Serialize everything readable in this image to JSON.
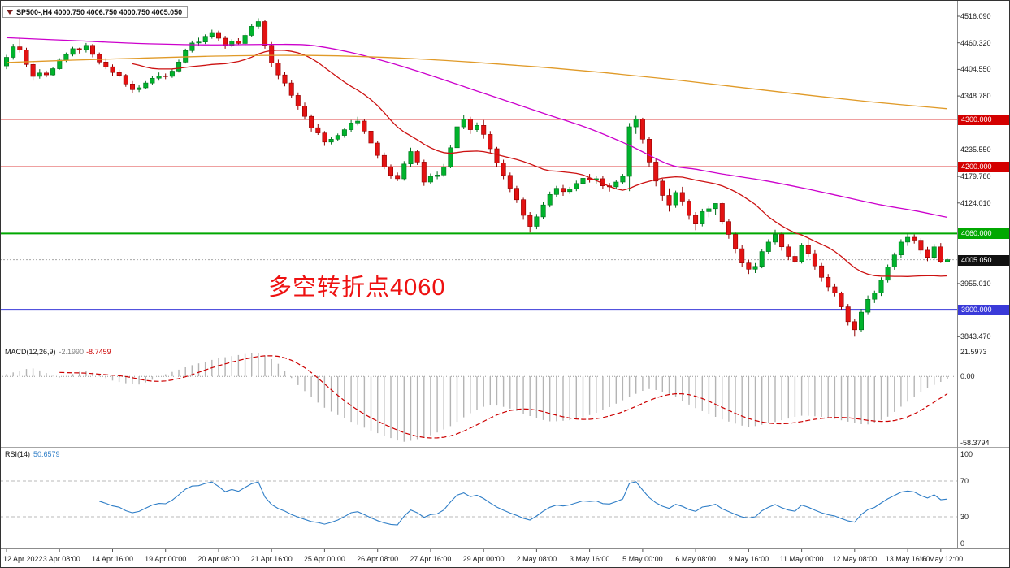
{
  "window": {
    "chart_title": "SP500-,H4 4000.750 4006.750 4000.750 4005.050"
  },
  "annotation": {
    "text": "多空转折点4060",
    "color": "#ee1111"
  },
  "macd": {
    "label": "MACD(12,26,9)",
    "main_value": "-2.1990",
    "signal_value": "-8.7459"
  },
  "rsi": {
    "label": "RSI(14)",
    "value": "50.6579"
  },
  "chart_data": {
    "type": "candlestick",
    "symbol": "SP500-",
    "timeframe": "H4",
    "current_bar": {
      "open": 4000.75,
      "high": 4006.75,
      "low": 4000.75,
      "close": 4005.05
    },
    "price_axis": {
      "range": {
        "top": 4548.5,
        "bottom": 3826.9
      },
      "ticks": [
        {
          "v": 4516.09,
          "t": "4516.090"
        },
        {
          "v": 4460.32,
          "t": "4460.320"
        },
        {
          "v": 4404.55,
          "t": "4404.550"
        },
        {
          "v": 4348.78,
          "t": "4348.780"
        },
        {
          "v": 4235.55,
          "t": "4235.550"
        },
        {
          "v": 4179.78,
          "t": "4179.780"
        },
        {
          "v": 4124.01,
          "t": "4124.010"
        },
        {
          "v": 3955.01,
          "t": "3955.010"
        },
        {
          "v": 3843.47,
          "t": "3843.470"
        }
      ]
    },
    "levels": [
      {
        "price": 4300,
        "label": "4300.000",
        "color": "#d40000",
        "width": 1.4
      },
      {
        "price": 4200,
        "label": "4200.000",
        "color": "#d40000",
        "width": 1.4
      },
      {
        "price": 4060,
        "label": "4060.000",
        "color": "#00a800",
        "width": 2
      },
      {
        "price": 3900,
        "label": "3900.000",
        "color": "#3a3ad9",
        "width": 2
      }
    ],
    "current_price": {
      "price": 4005.05,
      "label": "4005.050",
      "badge_color": "#111111",
      "line_color": "#a8a8a8"
    },
    "colors": {
      "up": "#00b32c",
      "up_edge": "#00701c",
      "down": "#e31212",
      "down_edge": "#8f0000"
    },
    "candles": [
      [
        4412,
        4435,
        4405,
        4430
      ],
      [
        4430,
        4458,
        4425,
        4452
      ],
      [
        4452,
        4471,
        4440,
        4445
      ],
      [
        4445,
        4450,
        4410,
        4415
      ],
      [
        4415,
        4420,
        4381,
        4390
      ],
      [
        4390,
        4405,
        4385,
        4397
      ],
      [
        4397,
        4402,
        4388,
        4393
      ],
      [
        4393,
        4410,
        4391,
        4406
      ],
      [
        4406,
        4428,
        4404,
        4424
      ],
      [
        4424,
        4440,
        4420,
        4436
      ],
      [
        4436,
        4452,
        4432,
        4448
      ],
      [
        4448,
        4450,
        4438,
        4446
      ],
      [
        4446,
        4460,
        4440,
        4455
      ],
      [
        4455,
        4458,
        4430,
        4436
      ],
      [
        4436,
        4440,
        4415,
        4420
      ],
      [
        4420,
        4428,
        4405,
        4410
      ],
      [
        4410,
        4415,
        4390,
        4398
      ],
      [
        4398,
        4404,
        4388,
        4392
      ],
      [
        4392,
        4395,
        4368,
        4374
      ],
      [
        4374,
        4380,
        4355,
        4362
      ],
      [
        4362,
        4371,
        4357,
        4366
      ],
      [
        4366,
        4380,
        4363,
        4376
      ],
      [
        4376,
        4390,
        4372,
        4386
      ],
      [
        4386,
        4398,
        4381,
        4391
      ],
      [
        4391,
        4396,
        4384,
        4390
      ],
      [
        4390,
        4406,
        4387,
        4401
      ],
      [
        4401,
        4425,
        4398,
        4420
      ],
      [
        4420,
        4448,
        4417,
        4444
      ],
      [
        4444,
        4465,
        4440,
        4460
      ],
      [
        4460,
        4471,
        4454,
        4462
      ],
      [
        4462,
        4478,
        4458,
        4474
      ],
      [
        4474,
        4488,
        4469,
        4482
      ],
      [
        4482,
        4486,
        4464,
        4470
      ],
      [
        4470,
        4475,
        4448,
        4455
      ],
      [
        4455,
        4468,
        4451,
        4464
      ],
      [
        4464,
        4470,
        4456,
        4459
      ],
      [
        4459,
        4480,
        4455,
        4476
      ],
      [
        4476,
        4500,
        4472,
        4495
      ],
      [
        4495,
        4512,
        4489,
        4505
      ],
      [
        4505,
        4508,
        4448,
        4455
      ],
      [
        4455,
        4462,
        4410,
        4418
      ],
      [
        4418,
        4425,
        4384,
        4393
      ],
      [
        4393,
        4400,
        4369,
        4376
      ],
      [
        4376,
        4382,
        4344,
        4350
      ],
      [
        4350,
        4356,
        4320,
        4328
      ],
      [
        4328,
        4335,
        4299,
        4306
      ],
      [
        4306,
        4310,
        4274,
        4282
      ],
      [
        4282,
        4290,
        4267,
        4271
      ],
      [
        4271,
        4275,
        4244,
        4252
      ],
      [
        4252,
        4262,
        4247,
        4258
      ],
      [
        4258,
        4270,
        4254,
        4266
      ],
      [
        4266,
        4282,
        4261,
        4278
      ],
      [
        4278,
        4298,
        4273,
        4292
      ],
      [
        4292,
        4305,
        4287,
        4296
      ],
      [
        4296,
        4300,
        4269,
        4275
      ],
      [
        4275,
        4280,
        4244,
        4250
      ],
      [
        4250,
        4255,
        4217,
        4224
      ],
      [
        4224,
        4230,
        4195,
        4200
      ],
      [
        4200,
        4205,
        4175,
        4182
      ],
      [
        4182,
        4188,
        4170,
        4175
      ],
      [
        4175,
        4212,
        4171,
        4206
      ],
      [
        4206,
        4240,
        4199,
        4232
      ],
      [
        4232,
        4236,
        4204,
        4210
      ],
      [
        4210,
        4215,
        4160,
        4168
      ],
      [
        4168,
        4186,
        4163,
        4180
      ],
      [
        4180,
        4190,
        4174,
        4183
      ],
      [
        4183,
        4206,
        4179,
        4200
      ],
      [
        4200,
        4246,
        4197,
        4240
      ],
      [
        4240,
        4290,
        4237,
        4284
      ],
      [
        4284,
        4308,
        4279,
        4300
      ],
      [
        4300,
        4305,
        4269,
        4278
      ],
      [
        4278,
        4293,
        4273,
        4287
      ],
      [
        4287,
        4298,
        4259,
        4268
      ],
      [
        4268,
        4275,
        4229,
        4238
      ],
      [
        4238,
        4242,
        4199,
        4208
      ],
      [
        4208,
        4215,
        4174,
        4182
      ],
      [
        4182,
        4188,
        4147,
        4155
      ],
      [
        4155,
        4160,
        4124,
        4131
      ],
      [
        4131,
        4135,
        4089,
        4098
      ],
      [
        4098,
        4105,
        4062,
        4075
      ],
      [
        4075,
        4101,
        4069,
        4095
      ],
      [
        4095,
        4126,
        4091,
        4120
      ],
      [
        4120,
        4148,
        4115,
        4142
      ],
      [
        4142,
        4160,
        4137,
        4155
      ],
      [
        4155,
        4162,
        4139,
        4148
      ],
      [
        4148,
        4158,
        4143,
        4154
      ],
      [
        4154,
        4171,
        4149,
        4165
      ],
      [
        4165,
        4182,
        4159,
        4176
      ],
      [
        4176,
        4185,
        4167,
        4172
      ],
      [
        4172,
        4180,
        4165,
        4175
      ],
      [
        4175,
        4180,
        4154,
        4160
      ],
      [
        4160,
        4166,
        4148,
        4158
      ],
      [
        4158,
        4172,
        4153,
        4168
      ],
      [
        4168,
        4185,
        4163,
        4180
      ],
      [
        4180,
        4292,
        4149,
        4284
      ],
      [
        4284,
        4307,
        4269,
        4300
      ],
      [
        4300,
        4303,
        4249,
        4258
      ],
      [
        4258,
        4262,
        4199,
        4210
      ],
      [
        4210,
        4218,
        4159,
        4170
      ],
      [
        4170,
        4175,
        4129,
        4140
      ],
      [
        4140,
        4155,
        4106,
        4120
      ],
      [
        4120,
        4150,
        4114,
        4146
      ],
      [
        4146,
        4158,
        4119,
        4128
      ],
      [
        4128,
        4132,
        4089,
        4098
      ],
      [
        4098,
        4105,
        4067,
        4080
      ],
      [
        4080,
        4112,
        4075,
        4106
      ],
      [
        4106,
        4118,
        4094,
        4112
      ],
      [
        4112,
        4121,
        4099,
        4123
      ],
      [
        4123,
        4125,
        4079,
        4085
      ],
      [
        4085,
        4090,
        4049,
        4058
      ],
      [
        4058,
        4062,
        4019,
        4028
      ],
      [
        4028,
        4035,
        3989,
        3998
      ],
      [
        3998,
        4005,
        3975,
        3985
      ],
      [
        3985,
        3998,
        3977,
        3991
      ],
      [
        3991,
        4028,
        3987,
        4022
      ],
      [
        4022,
        4048,
        4017,
        4042
      ],
      [
        4042,
        4068,
        4037,
        4058
      ],
      [
        4058,
        4062,
        4024,
        4032
      ],
      [
        4032,
        4038,
        4004,
        4012
      ],
      [
        4012,
        4020,
        3998,
        4001
      ],
      [
        4001,
        4040,
        3997,
        4035
      ],
      [
        4035,
        4049,
        4011,
        4018
      ],
      [
        4018,
        4025,
        3984,
        3992
      ],
      [
        3992,
        3998,
        3959,
        3968
      ],
      [
        3968,
        3975,
        3939,
        3948
      ],
      [
        3948,
        3955,
        3928,
        3935
      ],
      [
        3935,
        3938,
        3899,
        3906
      ],
      [
        3906,
        3912,
        3867,
        3875
      ],
      [
        3875,
        3880,
        3843.5,
        3858
      ],
      [
        3858,
        3902,
        3854,
        3895
      ],
      [
        3895,
        3930,
        3889,
        3922
      ],
      [
        3922,
        3940,
        3914,
        3935
      ],
      [
        3935,
        3968,
        3929,
        3962
      ],
      [
        3962,
        3995,
        3957,
        3990
      ],
      [
        3990,
        4020,
        3984,
        4015
      ],
      [
        4015,
        4048,
        4009,
        4042
      ],
      [
        4042,
        4060,
        4034,
        4052
      ],
      [
        4052,
        4058,
        4039,
        4046
      ],
      [
        4046,
        4050,
        4017,
        4025
      ],
      [
        4025,
        4032,
        4002,
        4010
      ],
      [
        4010,
        4038,
        4004,
        4032
      ],
      [
        4032,
        4040,
        3998,
        4001
      ],
      [
        4000.75,
        4006.75,
        4000.75,
        4005.05
      ]
    ],
    "moving_averages": [
      {
        "name": "fast-ma",
        "color": "#cc1111",
        "type": "sma",
        "period": 20
      },
      {
        "name": "mid-ma",
        "color": "#cc00cc",
        "points": [
          [
            0,
            4471
          ],
          [
            10,
            4465
          ],
          [
            20,
            4459
          ],
          [
            30,
            4456
          ],
          [
            40,
            4457
          ],
          [
            46,
            4455
          ],
          [
            52,
            4440
          ],
          [
            58,
            4418
          ],
          [
            64,
            4392
          ],
          [
            70,
            4364
          ],
          [
            76,
            4336
          ],
          [
            82,
            4308
          ],
          [
            88,
            4280
          ],
          [
            94,
            4245
          ],
          [
            100,
            4205
          ],
          [
            104,
            4195
          ],
          [
            108,
            4185
          ],
          [
            114,
            4172
          ],
          [
            120,
            4156
          ],
          [
            126,
            4138
          ],
          [
            132,
            4120
          ],
          [
            137,
            4108
          ],
          [
            142,
            4094
          ]
        ]
      },
      {
        "name": "slow-ma",
        "color": "#e09a28",
        "points": [
          [
            0,
            4419
          ],
          [
            10,
            4424
          ],
          [
            20,
            4428
          ],
          [
            30,
            4432
          ],
          [
            40,
            4434
          ],
          [
            50,
            4433
          ],
          [
            60,
            4428
          ],
          [
            70,
            4420
          ],
          [
            80,
            4410
          ],
          [
            90,
            4398
          ],
          [
            100,
            4384
          ],
          [
            110,
            4368
          ],
          [
            120,
            4352
          ],
          [
            130,
            4337
          ],
          [
            142,
            4322
          ]
        ]
      }
    ],
    "macd_panel": {
      "params": [
        12,
        26,
        9
      ],
      "scale": {
        "max": 21.5973,
        "min": -58.3794
      },
      "ticks": [
        {
          "v": 21.5973,
          "t": "21.5973"
        },
        {
          "v": 0,
          "t": "0.00"
        },
        {
          "v": -58.3794,
          "t": "-58.3794"
        }
      ],
      "histogram_color": "#b4b4b4",
      "signal_color": "#cc0000",
      "macd_points": [
        [
          0,
          2
        ],
        [
          4,
          8
        ],
        [
          8,
          -2
        ],
        [
          12,
          6
        ],
        [
          16,
          -4
        ],
        [
          20,
          -8
        ],
        [
          24,
          2
        ],
        [
          28,
          10
        ],
        [
          32,
          16
        ],
        [
          38,
          21.6
        ],
        [
          41,
          12
        ],
        [
          44,
          -8
        ],
        [
          48,
          -28
        ],
        [
          52,
          -40
        ],
        [
          56,
          -50
        ],
        [
          60,
          -58.4
        ],
        [
          64,
          -52
        ],
        [
          67,
          -44
        ],
        [
          70,
          -32
        ],
        [
          73,
          -24
        ],
        [
          76,
          -28
        ],
        [
          79,
          -35
        ],
        [
          82,
          -40
        ],
        [
          86,
          -38
        ],
        [
          90,
          -30
        ],
        [
          94,
          -18
        ],
        [
          97,
          -10
        ],
        [
          100,
          -15
        ],
        [
          104,
          -28
        ],
        [
          108,
          -38
        ],
        [
          112,
          -45
        ],
        [
          116,
          -40
        ],
        [
          120,
          -34
        ],
        [
          124,
          -36
        ],
        [
          128,
          -41
        ],
        [
          130,
          -43
        ],
        [
          133,
          -36
        ],
        [
          136,
          -22
        ],
        [
          139,
          -10
        ],
        [
          142,
          -2.2
        ]
      ]
    },
    "rsi_panel": {
      "period": 14,
      "scale": {
        "max": 100,
        "min": 0
      },
      "ticks": [
        {
          "v": 100,
          "t": "100"
        },
        {
          "v": 70,
          "t": "70"
        },
        {
          "v": 30,
          "t": "30"
        },
        {
          "v": 0,
          "t": "0"
        }
      ],
      "levels": [
        70,
        30
      ],
      "color": "#2f7ec7"
    },
    "x_axis": {
      "labels": [
        {
          "i": 0,
          "t": "12 Apr 2022"
        },
        {
          "i": 8,
          "t": "13 Apr 08:00"
        },
        {
          "i": 16,
          "t": "14 Apr 16:00"
        },
        {
          "i": 24,
          "t": "19 Apr 00:00"
        },
        {
          "i": 32,
          "t": "20 Apr 08:00"
        },
        {
          "i": 40,
          "t": "21 Apr 16:00"
        },
        {
          "i": 48,
          "t": "25 Apr 00:00"
        },
        {
          "i": 56,
          "t": "26 Apr 08:00"
        },
        {
          "i": 64,
          "t": "27 Apr 16:00"
        },
        {
          "i": 72,
          "t": "29 Apr 00:00"
        },
        {
          "i": 80,
          "t": "2 May 08:00"
        },
        {
          "i": 88,
          "t": "3 May 16:00"
        },
        {
          "i": 96,
          "t": "5 May 00:00"
        },
        {
          "i": 104,
          "t": "6 May 08:00"
        },
        {
          "i": 112,
          "t": "9 May 16:00"
        },
        {
          "i": 120,
          "t": "11 May 00:00"
        },
        {
          "i": 128,
          "t": "12 May 08:00"
        },
        {
          "i": 136,
          "t": "13 May 16:00"
        },
        {
          "i": 141,
          "t": "16 May 12:00"
        }
      ]
    }
  }
}
